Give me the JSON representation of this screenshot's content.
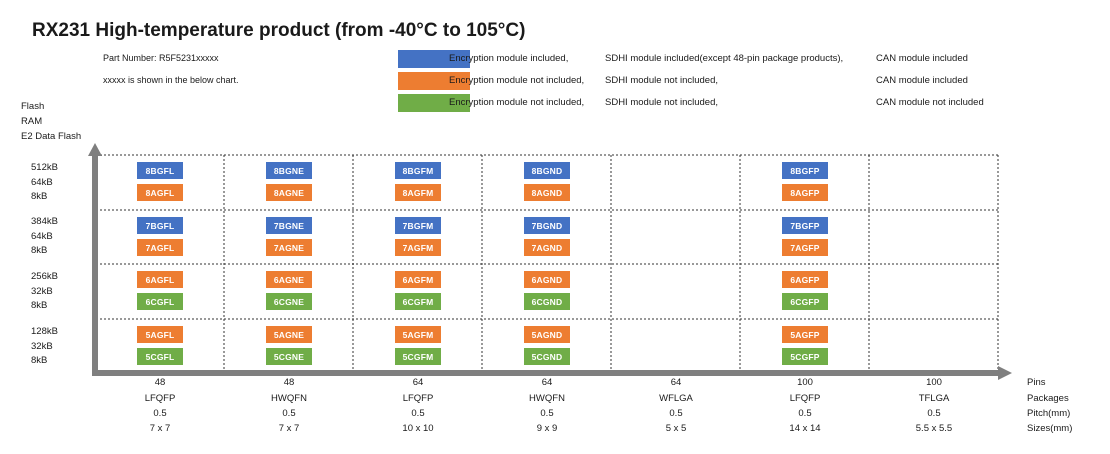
{
  "title": "RX231   High-temperature product (from -40°C to 105°C)",
  "part_number": "Part Number: R5F5231xxxxx",
  "chart_note": "xxxxx is shown in the below chart.",
  "legend": [
    {
      "color": "#4472C4",
      "encryption": "Encryption module included,",
      "sdhi": "SDHI module included(except 48-pin package products),",
      "can": "CAN module included"
    },
    {
      "color": "#ED7D31",
      "encryption": "Encryption module not included,",
      "sdhi": "SDHI module not included,",
      "can": "CAN module included"
    },
    {
      "color": "#70AD47",
      "encryption": "Encryption module not included,",
      "sdhi": "SDHI module not included,",
      "can": "CAN module not included"
    }
  ],
  "y_axis_labels": [
    "Flash",
    "RAM",
    "E2 Data Flash"
  ],
  "memory_rows": [
    {
      "flash": "512kB",
      "ram": "64kB",
      "e2": "8kB"
    },
    {
      "flash": "384kB",
      "ram": "64kB",
      "e2": "8kB"
    },
    {
      "flash": "256kB",
      "ram": "32kB",
      "e2": "8kB"
    },
    {
      "flash": "128kB",
      "ram": "32kB",
      "e2": "8kB"
    }
  ],
  "packages": [
    {
      "pins": "48",
      "package": "LFQFP",
      "pitch": "0.5",
      "size": "7 x 7"
    },
    {
      "pins": "48",
      "package": "HWQFN",
      "pitch": "0.5",
      "size": "7 x 7"
    },
    {
      "pins": "64",
      "package": "LFQFP",
      "pitch": "0.5",
      "size": "10 x 10"
    },
    {
      "pins": "64",
      "package": "HWQFN",
      "pitch": "0.5",
      "size": "9 x 9"
    },
    {
      "pins": "64",
      "package": "WFLGA",
      "pitch": "0.5",
      "size": "5 x 5"
    },
    {
      "pins": "100",
      "package": "LFQFP",
      "pitch": "0.5",
      "size": "14 x 14"
    },
    {
      "pins": "100",
      "package": "TFLGA",
      "pitch": "0.5",
      "size": "5.5 x 5.5"
    }
  ],
  "x_axis_row_labels": [
    "Pins",
    "Packages",
    "Pitch(mm)",
    "Sizes(mm)"
  ],
  "cells": [
    [
      [
        {
          "code": "8BGFL",
          "color": "blue"
        },
        {
          "code": "8AGFL",
          "color": "orange"
        }
      ],
      [
        {
          "code": "8BGNE",
          "color": "blue"
        },
        {
          "code": "8AGNE",
          "color": "orange"
        }
      ],
      [
        {
          "code": "8BGFM",
          "color": "blue"
        },
        {
          "code": "8AGFM",
          "color": "orange"
        }
      ],
      [
        {
          "code": "8BGND",
          "color": "blue"
        },
        {
          "code": "8AGND",
          "color": "orange"
        }
      ],
      [],
      [
        {
          "code": "8BGFP",
          "color": "blue"
        },
        {
          "code": "8AGFP",
          "color": "orange"
        }
      ],
      []
    ],
    [
      [
        {
          "code": "7BGFL",
          "color": "blue"
        },
        {
          "code": "7AGFL",
          "color": "orange"
        }
      ],
      [
        {
          "code": "7BGNE",
          "color": "blue"
        },
        {
          "code": "7AGNE",
          "color": "orange"
        }
      ],
      [
        {
          "code": "7BGFM",
          "color": "blue"
        },
        {
          "code": "7AGFM",
          "color": "orange"
        }
      ],
      [
        {
          "code": "7BGND",
          "color": "blue"
        },
        {
          "code": "7AGND",
          "color": "orange"
        }
      ],
      [],
      [
        {
          "code": "7BGFP",
          "color": "blue"
        },
        {
          "code": "7AGFP",
          "color": "orange"
        }
      ],
      []
    ],
    [
      [
        {
          "code": "6AGFL",
          "color": "orange"
        },
        {
          "code": "6CGFL",
          "color": "green"
        }
      ],
      [
        {
          "code": "6AGNE",
          "color": "orange"
        },
        {
          "code": "6CGNE",
          "color": "green"
        }
      ],
      [
        {
          "code": "6AGFM",
          "color": "orange"
        },
        {
          "code": "6CGFM",
          "color": "green"
        }
      ],
      [
        {
          "code": "6AGND",
          "color": "orange"
        },
        {
          "code": "6CGND",
          "color": "green"
        }
      ],
      [],
      [
        {
          "code": "6AGFP",
          "color": "orange"
        },
        {
          "code": "6CGFP",
          "color": "green"
        }
      ],
      []
    ],
    [
      [
        {
          "code": "5AGFL",
          "color": "orange"
        },
        {
          "code": "5CGFL",
          "color": "green"
        }
      ],
      [
        {
          "code": "5AGNE",
          "color": "orange"
        },
        {
          "code": "5CGNE",
          "color": "green"
        }
      ],
      [
        {
          "code": "5AGFM",
          "color": "orange"
        },
        {
          "code": "5CGFM",
          "color": "green"
        }
      ],
      [
        {
          "code": "5AGND",
          "color": "orange"
        },
        {
          "code": "5CGND",
          "color": "green"
        }
      ],
      [],
      [
        {
          "code": "5AGFP",
          "color": "orange"
        },
        {
          "code": "5CGFP",
          "color": "green"
        }
      ],
      []
    ]
  ],
  "colors": {
    "blue": "#4472C4",
    "orange": "#ED7D31",
    "green": "#70AD47",
    "axis": "#7f7f7f"
  }
}
